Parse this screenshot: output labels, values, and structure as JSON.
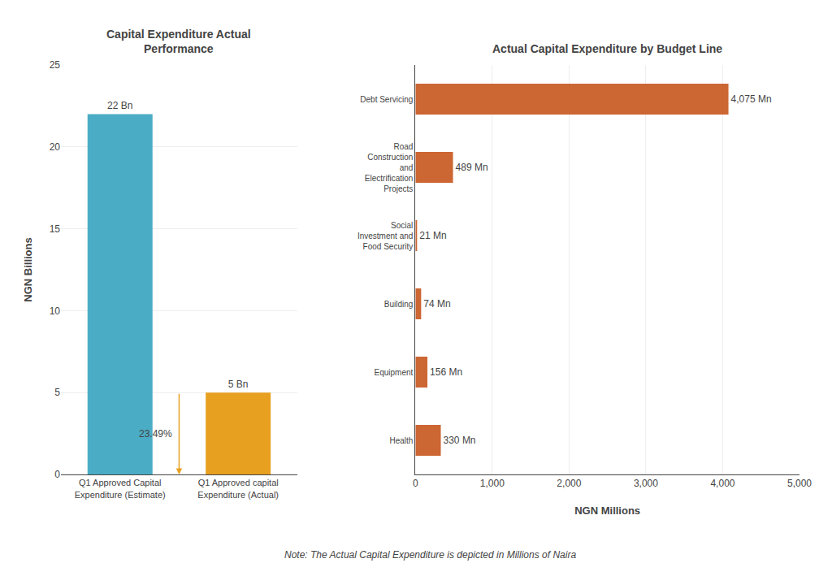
{
  "note": "Note: The Actual Capital Expenditure is depicted in Millions of Naira",
  "chart_data": [
    {
      "type": "bar",
      "title": "Capital Expenditure Actual\nPerformance",
      "categories": [
        "Q1 Approved Capital\nExpenditure (Estimate)",
        "Q1 Approved capital\nExpenditure (Actual)"
      ],
      "values": [
        22,
        5
      ],
      "colors": [
        "#4BACC6",
        "#E8A020"
      ],
      "value_labels": [
        "22 Bn",
        "5 Bn"
      ],
      "data_labels": true,
      "ylabel": "NGN Billions",
      "ylim": [
        0,
        25
      ],
      "yticks": [
        0,
        5,
        10,
        15,
        20,
        25
      ],
      "grid": true,
      "annotations": [
        {
          "text": "23.49%",
          "color": "#E8A020"
        }
      ]
    },
    {
      "type": "bar",
      "orientation": "horizontal",
      "title": "Actual Capital Expenditure by Budget Line",
      "categories": [
        "Debt Servicing",
        "Road\nConstruction\nand\nElectrification\nProjects",
        "Social\nInvestment and\nFood Security",
        "Building",
        "Equipment",
        "Health"
      ],
      "values": [
        4075,
        489,
        21,
        74,
        156,
        330
      ],
      "color": "#CC6633",
      "value_labels": [
        "4,075 Mn",
        "489 Mn",
        "21 Mn",
        "74 Mn",
        "156 Mn",
        "330 Mn"
      ],
      "data_labels": true,
      "xlabel": "NGN Millions",
      "xlim": [
        0,
        5000
      ],
      "xticks": [
        0,
        {
          "value": 1000,
          "label": "1,000"
        },
        {
          "value": 2000,
          "label": "2,000"
        },
        {
          "value": 3000,
          "label": "3,000"
        },
        {
          "value": 4000,
          "label": "4,000"
        },
        {
          "value": 5000,
          "label": "5,000"
        }
      ],
      "grid": true
    }
  ]
}
